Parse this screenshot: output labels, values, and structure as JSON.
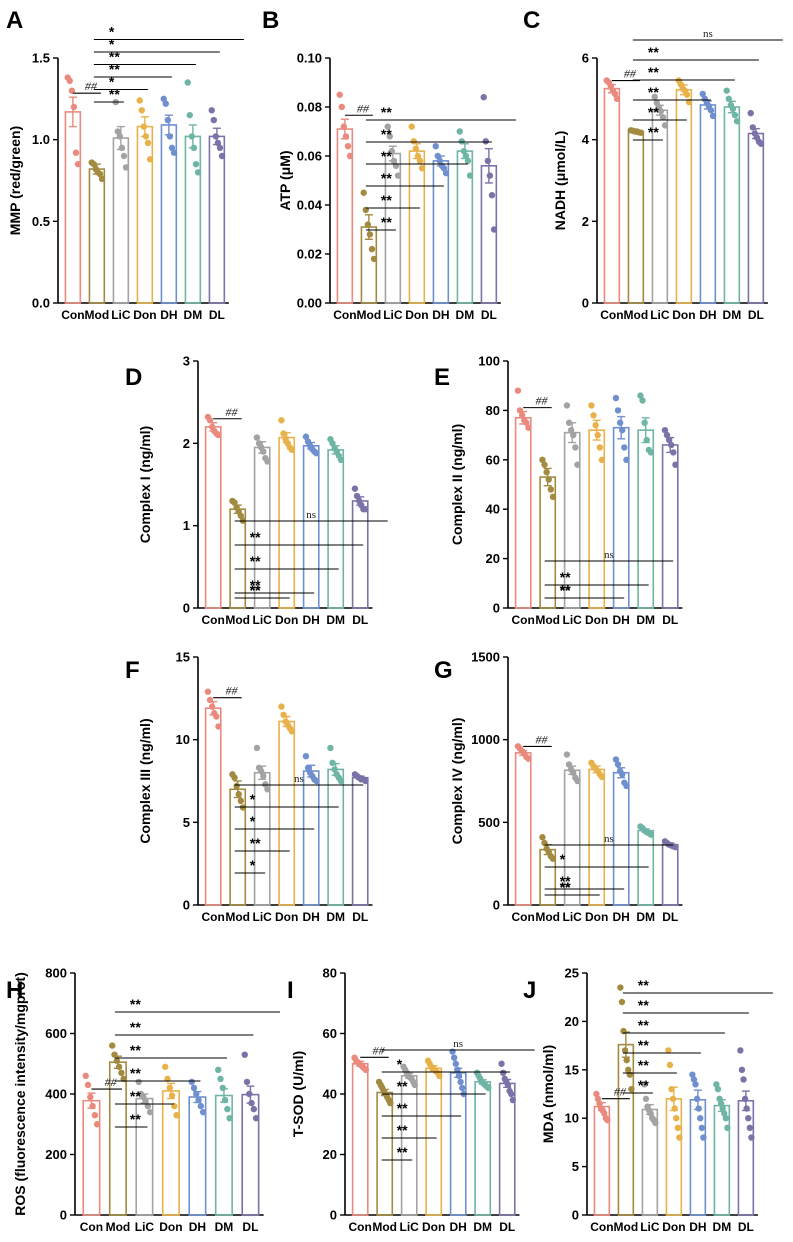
{
  "colors": {
    "Con": "#ea8a7e",
    "Mod": "#a28a40",
    "LiC": "#a3a3a3",
    "Don": "#e8b14a",
    "DH": "#6f8fcf",
    "DM": "#6fb5a6",
    "DL": "#7a73a8"
  },
  "chart_data": [
    {
      "type": "bar",
      "panel": "A",
      "ylabel": "MMP (red/green)",
      "categories": [
        "Con",
        "Mod",
        "LiC",
        "Don",
        "DH",
        "DM",
        "DL"
      ],
      "values": [
        1.17,
        0.82,
        1.01,
        1.08,
        1.09,
        1.02,
        1.02
      ],
      "errors": [
        0.09,
        0.03,
        0.07,
        0.06,
        0.06,
        0.07,
        0.05
      ],
      "points": [
        [
          1.38,
          1.36,
          1.3,
          1.2,
          0.92,
          0.85
        ],
        [
          0.86,
          0.85,
          0.82,
          0.8,
          0.79,
          0.76
        ],
        [
          1.23,
          1.05,
          1.02,
          0.95,
          0.9,
          0.83
        ],
        [
          1.24,
          1.18,
          1.08,
          1.02,
          0.98,
          0.88
        ],
        [
          1.25,
          1.22,
          1.12,
          1.02,
          0.95,
          0.92
        ],
        [
          1.35,
          1.15,
          1.02,
          0.95,
          0.85,
          0.8
        ],
        [
          1.18,
          1.12,
          1.02,
          0.98,
          0.95,
          0.9
        ]
      ],
      "ylim": [
        0,
        1.5
      ],
      "yticks": [
        0,
        0.5,
        1.0,
        1.5
      ],
      "yticklabels": [
        "0.0",
        "0.5",
        "1.0",
        "1.5"
      ],
      "ref_mark": "##",
      "significance": [
        "**",
        "*",
        "**",
        "**",
        "*",
        "*"
      ]
    },
    {
      "type": "bar",
      "panel": "B",
      "ylabel": "ATP (μM)",
      "categories": [
        "Con",
        "Mod",
        "LiC",
        "Don",
        "DH",
        "DM",
        "DL"
      ],
      "values": [
        0.071,
        0.031,
        0.061,
        0.062,
        0.058,
        0.062,
        0.056
      ],
      "errors": [
        0.004,
        0.005,
        0.003,
        0.003,
        0.002,
        0.003,
        0.007
      ],
      "points": [
        [
          0.085,
          0.08,
          0.072,
          0.068,
          0.064,
          0.06
        ],
        [
          0.045,
          0.038,
          0.032,
          0.028,
          0.022,
          0.018
        ],
        [
          0.072,
          0.068,
          0.062,
          0.058,
          0.056,
          0.052
        ],
        [
          0.072,
          0.066,
          0.063,
          0.06,
          0.058,
          0.055
        ],
        [
          0.064,
          0.06,
          0.058,
          0.056,
          0.055,
          0.053
        ],
        [
          0.07,
          0.066,
          0.062,
          0.06,
          0.058,
          0.052
        ],
        [
          0.084,
          0.066,
          0.058,
          0.052,
          0.044,
          0.03
        ]
      ],
      "ylim": [
        0,
        0.1
      ],
      "yticks": [
        0,
        0.02,
        0.04,
        0.06,
        0.08,
        0.1
      ],
      "yticklabels": [
        "0.00",
        "0.02",
        "0.04",
        "0.06",
        "0.08",
        "0.10"
      ],
      "ref_mark": "##",
      "significance": [
        "**",
        "**",
        "**",
        "**",
        "**",
        "**"
      ]
    },
    {
      "type": "bar",
      "panel": "C",
      "ylabel": "NADH (μmol/L)",
      "categories": [
        "Con",
        "Mod",
        "LiC",
        "Don",
        "DH",
        "DM",
        "DL"
      ],
      "values": [
        5.25,
        4.2,
        4.72,
        5.22,
        4.85,
        4.8,
        4.15
      ],
      "errors": [
        0.1,
        0.02,
        0.12,
        0.12,
        0.1,
        0.14,
        0.12
      ],
      "points": [
        [
          5.45,
          5.4,
          5.3,
          5.2,
          5.12,
          5.0
        ],
        [
          4.23,
          4.22,
          4.2,
          4.2,
          4.18,
          4.17
        ],
        [
          5.05,
          4.9,
          4.8,
          4.7,
          4.55,
          4.35
        ],
        [
          5.45,
          5.35,
          5.25,
          5.2,
          5.1,
          4.92
        ],
        [
          5.12,
          5.0,
          4.9,
          4.82,
          4.72,
          4.58
        ],
        [
          5.2,
          5.0,
          4.85,
          4.75,
          4.6,
          4.45
        ],
        [
          4.65,
          4.3,
          4.15,
          4.05,
          3.95,
          3.9
        ]
      ],
      "ylim": [
        0,
        6
      ],
      "yticks": [
        0,
        2,
        4,
        6
      ],
      "yticklabels": [
        "0",
        "2",
        "4",
        "6"
      ],
      "ref_mark": "##",
      "significance": [
        "**",
        "**",
        "**",
        "**",
        "**",
        "ns"
      ]
    },
    {
      "type": "bar",
      "panel": "D",
      "ylabel": "Complex I (ng/ml)",
      "categories": [
        "Con",
        "Mod",
        "LiC",
        "Don",
        "DH",
        "DM",
        "DL"
      ],
      "values": [
        2.2,
        1.2,
        1.95,
        2.07,
        1.97,
        1.92,
        1.3
      ],
      "errors": [
        0.05,
        0.05,
        0.07,
        0.06,
        0.04,
        0.05,
        0.05
      ],
      "points": [
        [
          2.32,
          2.28,
          2.2,
          2.15,
          2.12,
          2.1
        ],
        [
          1.3,
          1.28,
          1.22,
          1.17,
          1.12,
          1.06
        ],
        [
          2.07,
          2.0,
          1.95,
          1.9,
          1.82,
          1.78
        ],
        [
          2.28,
          2.12,
          2.05,
          2.0,
          1.95,
          1.92
        ],
        [
          2.08,
          2.02,
          1.97,
          1.93,
          1.9,
          1.88
        ],
        [
          2.05,
          2.0,
          1.94,
          1.9,
          1.85,
          1.8
        ],
        [
          1.45,
          1.36,
          1.3,
          1.25,
          1.2,
          1.2
        ]
      ],
      "ylim": [
        0,
        3
      ],
      "yticks": [
        0,
        1,
        2,
        3
      ],
      "yticklabels": [
        "0",
        "1",
        "2",
        "3"
      ],
      "ref_mark": "##",
      "significance": [
        "**",
        "**",
        "**",
        "**",
        "**",
        "ns"
      ]
    },
    {
      "type": "bar",
      "panel": "E",
      "ylabel": "Complex II (ng/ml)",
      "categories": [
        "Con",
        "Mod",
        "LiC",
        "Don",
        "DH",
        "DM",
        "DL"
      ],
      "values": [
        77,
        53,
        71,
        72,
        73,
        72,
        66
      ],
      "errors": [
        2.5,
        3.5,
        4,
        4,
        4.5,
        5,
        3
      ],
      "points": [
        [
          88,
          80,
          78,
          76,
          75,
          73
        ],
        [
          60,
          58,
          55,
          52,
          48,
          45
        ],
        [
          82,
          75,
          72,
          70,
          65,
          58
        ],
        [
          82,
          78,
          74,
          70,
          65,
          60
        ],
        [
          85,
          80,
          75,
          72,
          65,
          60
        ],
        [
          86,
          84,
          75,
          68,
          64,
          63
        ],
        [
          72,
          70,
          68,
          66,
          63,
          58
        ]
      ],
      "ylim": [
        0,
        100
      ],
      "yticks": [
        0,
        20,
        40,
        60,
        80,
        100
      ],
      "yticklabels": [
        "0",
        "20",
        "40",
        "60",
        "80",
        "100"
      ],
      "ref_mark": "##",
      "significance": [
        "**",
        "**",
        "**",
        "**",
        "ns"
      ]
    },
    {
      "type": "bar",
      "panel": "F",
      "ylabel": "Complex III (ng/ml)",
      "categories": [
        "Con",
        "Mod",
        "LiC",
        "Don",
        "DH",
        "DM",
        "DL"
      ],
      "values": [
        11.9,
        7.0,
        8.0,
        11.1,
        8.1,
        8.2,
        7.7
      ],
      "errors": [
        0.4,
        0.5,
        0.4,
        0.3,
        0.35,
        0.35,
        0.1
      ],
      "points": [
        [
          12.9,
          12.4,
          12.0,
          11.6,
          11.4,
          10.8
        ],
        [
          7.9,
          7.7,
          7.2,
          6.7,
          6.3,
          5.9
        ],
        [
          9.5,
          8.3,
          8.1,
          7.8,
          7.3,
          7.0
        ],
        [
          12.0,
          11.5,
          11.1,
          10.9,
          10.7,
          10.5
        ],
        [
          9.0,
          8.3,
          8.0,
          7.8,
          7.6,
          7.5
        ],
        [
          9.5,
          8.6,
          8.2,
          7.9,
          7.7,
          7.5
        ],
        [
          7.9,
          7.8,
          7.7,
          7.6,
          7.6,
          7.5
        ]
      ],
      "ylim": [
        0,
        15
      ],
      "yticks": [
        0,
        5,
        10,
        15
      ],
      "yticklabels": [
        "0",
        "5",
        "10",
        "15"
      ],
      "ref_mark": "##",
      "significance": [
        "*",
        "**",
        "*",
        "*",
        "ns"
      ]
    },
    {
      "type": "bar",
      "panel": "G",
      "ylabel": "Complex IV (ng/ml)",
      "categories": [
        "Con",
        "Mod",
        "LiC",
        "Don",
        "DH",
        "DM",
        "DL"
      ],
      "values": [
        920,
        335,
        815,
        820,
        800,
        450,
        365
      ],
      "errors": [
        15,
        30,
        25,
        20,
        30,
        10,
        10
      ],
      "points": [
        [
          960,
          945,
          930,
          915,
          895,
          885
        ],
        [
          410,
          375,
          340,
          320,
          295,
          280
        ],
        [
          910,
          850,
          820,
          800,
          770,
          750
        ],
        [
          860,
          840,
          825,
          810,
          790,
          775
        ],
        [
          880,
          850,
          810,
          790,
          740,
          720
        ],
        [
          475,
          465,
          450,
          440,
          435,
          425
        ],
        [
          385,
          375,
          365,
          360,
          355,
          350
        ]
      ],
      "ylim": [
        0,
        1500
      ],
      "yticks": [
        0,
        500,
        1000,
        1500
      ],
      "yticklabels": [
        "0",
        "500",
        "1000",
        "1500"
      ],
      "ref_mark": "##",
      "significance": [
        "**",
        "**",
        "**",
        "*",
        "ns"
      ]
    },
    {
      "type": "bar",
      "panel": "H",
      "ylabel": "ROS (fluorescence intensity/mgprot)",
      "categories": [
        "Con",
        "Mod",
        "LiC",
        "Don",
        "DH",
        "DM",
        "DL"
      ],
      "values": [
        378,
        505,
        385,
        410,
        390,
        395,
        398
      ],
      "errors": [
        25,
        20,
        15,
        25,
        18,
        22,
        28
      ],
      "points": [
        [
          460,
          430,
          390,
          360,
          330,
          300
        ],
        [
          560,
          530,
          510,
          490,
          470,
          450
        ],
        [
          440,
          400,
          390,
          375,
          360,
          340
        ],
        [
          490,
          450,
          420,
          395,
          360,
          330
        ],
        [
          440,
          420,
          400,
          380,
          360,
          340
        ],
        [
          480,
          450,
          420,
          380,
          350,
          320
        ],
        [
          530,
          440,
          400,
          370,
          350,
          320
        ]
      ],
      "ylim": [
        0,
        800
      ],
      "yticks": [
        0,
        200,
        400,
        600,
        800
      ],
      "yticklabels": [
        "0",
        "200",
        "400",
        "600",
        "800"
      ],
      "ref_mark": "##",
      "significance": [
        "**",
        "**",
        "**",
        "**",
        "**",
        "**"
      ]
    },
    {
      "type": "bar",
      "panel": "I",
      "ylabel": "T-SOD (U/ml)",
      "categories": [
        "Con",
        "Mod",
        "LiC",
        "Don",
        "DH",
        "DM",
        "DL"
      ],
      "values": [
        50,
        40.5,
        46,
        48.5,
        47,
        44,
        43.5
      ],
      "errors": [
        0.8,
        1.0,
        0.8,
        0.8,
        1.5,
        0.7,
        1.3
      ],
      "points": [
        [
          52,
          51,
          50.5,
          50,
          49.5,
          49,
          48.5,
          48
        ],
        [
          44,
          43,
          42,
          41,
          40,
          39,
          38,
          37
        ],
        [
          49,
          48,
          47,
          46,
          45.5,
          45,
          44,
          43
        ],
        [
          51,
          50,
          49,
          48.5,
          48,
          47.5,
          47,
          46
        ],
        [
          54,
          52,
          50,
          48,
          46,
          44,
          42,
          40
        ],
        [
          47,
          46,
          45,
          44,
          43.5,
          43,
          42.5,
          42
        ],
        [
          50,
          47,
          45,
          44,
          43,
          41,
          40,
          38
        ]
      ],
      "ylim": [
        0,
        80
      ],
      "yticks": [
        0,
        20,
        40,
        60,
        80
      ],
      "yticklabels": [
        "0",
        "20",
        "40",
        "60",
        "80"
      ],
      "ref_mark": "##",
      "significance": [
        "**",
        "**",
        "**",
        "**",
        "*",
        "ns"
      ]
    },
    {
      "type": "bar",
      "panel": "J",
      "ylabel": "MDA (nmol/ml)",
      "categories": [
        "Con",
        "Mod",
        "LiC",
        "Don",
        "DH",
        "DM",
        "DL"
      ],
      "values": [
        11.2,
        17.6,
        10.9,
        12.0,
        11.9,
        11.3,
        11.8
      ],
      "errors": [
        0.4,
        1.3,
        0.5,
        1.2,
        1.0,
        0.6,
        1.0
      ],
      "points": [
        [
          12.5,
          12,
          11.5,
          11,
          10.8,
          10.5,
          10,
          9.8
        ],
        [
          23.5,
          22,
          19,
          17,
          16,
          15,
          14.5,
          13
        ],
        [
          13.5,
          12,
          11.2,
          10.8,
          10.5,
          10,
          9.8,
          9.5
        ],
        [
          17,
          15.5,
          13,
          12,
          11,
          10,
          9,
          8
        ],
        [
          14.5,
          14,
          13.5,
          12,
          11,
          10,
          9,
          8
        ],
        [
          13.5,
          13,
          12,
          11.5,
          11,
          10.5,
          10,
          9
        ],
        [
          17,
          15,
          14,
          12,
          11,
          10,
          9,
          8
        ]
      ],
      "ylim": [
        0,
        25
      ],
      "yticks": [
        0,
        5,
        10,
        15,
        20,
        25
      ],
      "yticklabels": [
        "0",
        "5",
        "10",
        "15",
        "20",
        "25"
      ],
      "ref_mark": "##",
      "significance": [
        "**",
        "**",
        "**",
        "**",
        "**",
        "**"
      ]
    }
  ]
}
